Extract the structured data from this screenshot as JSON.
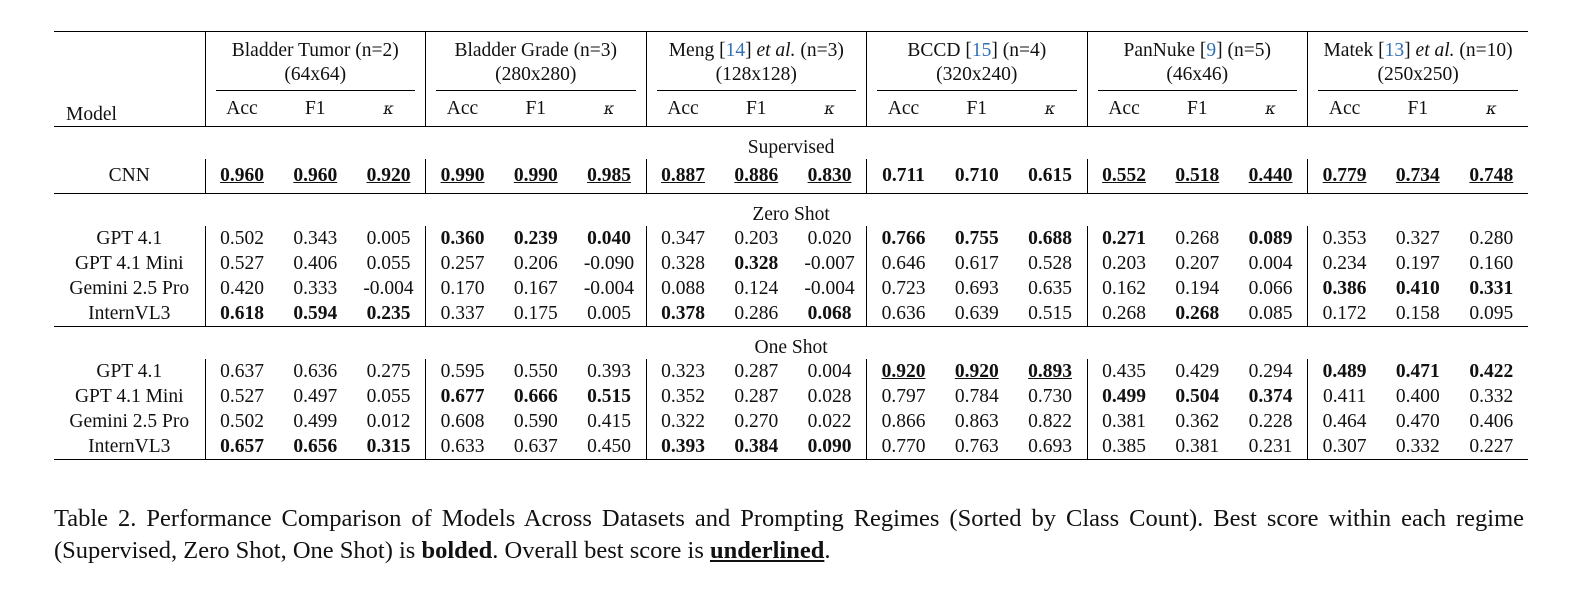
{
  "table": {
    "model_header": "Model",
    "datasets": [
      {
        "name": "Bladder Tumor",
        "cite": "",
        "etal": "",
        "classes": " (n=2)",
        "resolution": "(64x64)"
      },
      {
        "name": "Bladder Grade",
        "cite": "",
        "etal": "",
        "classes": " (n=3)",
        "resolution": "(280x280)"
      },
      {
        "name": "Meng ",
        "cite": "14",
        "etal": "et al.",
        "classes": " (n=3)",
        "resolution": "(128x128)"
      },
      {
        "name": "BCCD ",
        "cite": "15",
        "etal": "",
        "classes": " (n=4)",
        "resolution": "(320x240)"
      },
      {
        "name": "PanNuke ",
        "cite": "9",
        "etal": "",
        "classes": " (n=5)",
        "resolution": "(46x46)"
      },
      {
        "name": "Matek ",
        "cite": "13",
        "etal": "et al.",
        "classes": " (n=10)",
        "resolution": "(250x250)"
      }
    ],
    "metric_labels": [
      "Acc",
      "F1",
      "κ"
    ],
    "sections": [
      {
        "title": "Supervised",
        "rows": [
          {
            "model": "CNN",
            "cells": [
              {
                "v": "0.960",
                "b": true,
                "u": true
              },
              {
                "v": "0.960",
                "b": true,
                "u": true
              },
              {
                "v": "0.920",
                "b": true,
                "u": true
              },
              {
                "v": "0.990",
                "b": true,
                "u": true
              },
              {
                "v": "0.990",
                "b": true,
                "u": true
              },
              {
                "v": "0.985",
                "b": true,
                "u": true
              },
              {
                "v": "0.887",
                "b": true,
                "u": true
              },
              {
                "v": "0.886",
                "b": true,
                "u": true
              },
              {
                "v": "0.830",
                "b": true,
                "u": true
              },
              {
                "v": "0.711",
                "b": true,
                "u": false
              },
              {
                "v": "0.710",
                "b": true,
                "u": false
              },
              {
                "v": "0.615",
                "b": true,
                "u": false
              },
              {
                "v": "0.552",
                "b": true,
                "u": true
              },
              {
                "v": "0.518",
                "b": true,
                "u": true
              },
              {
                "v": "0.440",
                "b": true,
                "u": true
              },
              {
                "v": "0.779",
                "b": true,
                "u": true
              },
              {
                "v": "0.734",
                "b": true,
                "u": true
              },
              {
                "v": "0.748",
                "b": true,
                "u": true
              }
            ]
          }
        ]
      },
      {
        "title": "Zero Shot",
        "rows": [
          {
            "model": "GPT 4.1",
            "cells": [
              {
                "v": "0.502"
              },
              {
                "v": "0.343"
              },
              {
                "v": "0.005"
              },
              {
                "v": "0.360",
                "b": true
              },
              {
                "v": "0.239",
                "b": true
              },
              {
                "v": "0.040",
                "b": true
              },
              {
                "v": "0.347"
              },
              {
                "v": "0.203"
              },
              {
                "v": "0.020"
              },
              {
                "v": "0.766",
                "b": true
              },
              {
                "v": "0.755",
                "b": true
              },
              {
                "v": "0.688",
                "b": true
              },
              {
                "v": "0.271",
                "b": true
              },
              {
                "v": "0.268"
              },
              {
                "v": "0.089",
                "b": true
              },
              {
                "v": "0.353"
              },
              {
                "v": "0.327"
              },
              {
                "v": "0.280"
              }
            ]
          },
          {
            "model": "GPT 4.1 Mini",
            "cells": [
              {
                "v": "0.527"
              },
              {
                "v": "0.406"
              },
              {
                "v": "0.055"
              },
              {
                "v": "0.257"
              },
              {
                "v": "0.206"
              },
              {
                "v": "-0.090"
              },
              {
                "v": "0.328"
              },
              {
                "v": "0.328",
                "b": true
              },
              {
                "v": "-0.007"
              },
              {
                "v": "0.646"
              },
              {
                "v": "0.617"
              },
              {
                "v": "0.528"
              },
              {
                "v": "0.203"
              },
              {
                "v": "0.207"
              },
              {
                "v": "0.004"
              },
              {
                "v": "0.234"
              },
              {
                "v": "0.197"
              },
              {
                "v": "0.160"
              }
            ]
          },
          {
            "model": "Gemini 2.5 Pro",
            "cells": [
              {
                "v": "0.420"
              },
              {
                "v": "0.333"
              },
              {
                "v": "-0.004"
              },
              {
                "v": "0.170"
              },
              {
                "v": "0.167"
              },
              {
                "v": "-0.004"
              },
              {
                "v": "0.088"
              },
              {
                "v": "0.124"
              },
              {
                "v": "-0.004"
              },
              {
                "v": "0.723"
              },
              {
                "v": "0.693"
              },
              {
                "v": "0.635"
              },
              {
                "v": "0.162"
              },
              {
                "v": "0.194"
              },
              {
                "v": "0.066"
              },
              {
                "v": "0.386",
                "b": true
              },
              {
                "v": "0.410",
                "b": true
              },
              {
                "v": "0.331",
                "b": true
              }
            ]
          },
          {
            "model": "InternVL3",
            "cells": [
              {
                "v": "0.618",
                "b": true
              },
              {
                "v": "0.594",
                "b": true
              },
              {
                "v": "0.235",
                "b": true
              },
              {
                "v": "0.337"
              },
              {
                "v": "0.175"
              },
              {
                "v": "0.005"
              },
              {
                "v": "0.378",
                "b": true
              },
              {
                "v": "0.286"
              },
              {
                "v": "0.068",
                "b": true
              },
              {
                "v": "0.636"
              },
              {
                "v": "0.639"
              },
              {
                "v": "0.515"
              },
              {
                "v": "0.268"
              },
              {
                "v": "0.268",
                "b": true
              },
              {
                "v": "0.085"
              },
              {
                "v": "0.172"
              },
              {
                "v": "0.158"
              },
              {
                "v": "0.095"
              }
            ]
          }
        ]
      },
      {
        "title": "One Shot",
        "rows": [
          {
            "model": "GPT 4.1",
            "cells": [
              {
                "v": "0.637"
              },
              {
                "v": "0.636"
              },
              {
                "v": "0.275"
              },
              {
                "v": "0.595"
              },
              {
                "v": "0.550"
              },
              {
                "v": "0.393"
              },
              {
                "v": "0.323"
              },
              {
                "v": "0.287"
              },
              {
                "v": "0.004"
              },
              {
                "v": "0.920",
                "b": true,
                "u": true
              },
              {
                "v": "0.920",
                "b": true,
                "u": true
              },
              {
                "v": "0.893",
                "b": true,
                "u": true
              },
              {
                "v": "0.435"
              },
              {
                "v": "0.429"
              },
              {
                "v": "0.294"
              },
              {
                "v": "0.489",
                "b": true
              },
              {
                "v": "0.471",
                "b": true
              },
              {
                "v": "0.422",
                "b": true
              }
            ]
          },
          {
            "model": "GPT 4.1 Mini",
            "cells": [
              {
                "v": "0.527"
              },
              {
                "v": "0.497"
              },
              {
                "v": "0.055"
              },
              {
                "v": "0.677",
                "b": true
              },
              {
                "v": "0.666",
                "b": true
              },
              {
                "v": "0.515",
                "b": true
              },
              {
                "v": "0.352"
              },
              {
                "v": "0.287"
              },
              {
                "v": "0.028"
              },
              {
                "v": "0.797"
              },
              {
                "v": "0.784"
              },
              {
                "v": "0.730"
              },
              {
                "v": "0.499",
                "b": true
              },
              {
                "v": "0.504",
                "b": true
              },
              {
                "v": "0.374",
                "b": true
              },
              {
                "v": "0.411"
              },
              {
                "v": "0.400"
              },
              {
                "v": "0.332"
              }
            ]
          },
          {
            "model": "Gemini 2.5 Pro",
            "cells": [
              {
                "v": "0.502"
              },
              {
                "v": "0.499"
              },
              {
                "v": "0.012"
              },
              {
                "v": "0.608"
              },
              {
                "v": "0.590"
              },
              {
                "v": "0.415"
              },
              {
                "v": "0.322"
              },
              {
                "v": "0.270"
              },
              {
                "v": "0.022"
              },
              {
                "v": "0.866"
              },
              {
                "v": "0.863"
              },
              {
                "v": "0.822"
              },
              {
                "v": "0.381"
              },
              {
                "v": "0.362"
              },
              {
                "v": "0.228"
              },
              {
                "v": "0.464"
              },
              {
                "v": "0.470"
              },
              {
                "v": "0.406"
              }
            ]
          },
          {
            "model": "InternVL3",
            "cells": [
              {
                "v": "0.657",
                "b": true
              },
              {
                "v": "0.656",
                "b": true
              },
              {
                "v": "0.315",
                "b": true
              },
              {
                "v": "0.633"
              },
              {
                "v": "0.637"
              },
              {
                "v": "0.450"
              },
              {
                "v": "0.393",
                "b": true
              },
              {
                "v": "0.384",
                "b": true
              },
              {
                "v": "0.090",
                "b": true
              },
              {
                "v": "0.770"
              },
              {
                "v": "0.763"
              },
              {
                "v": "0.693"
              },
              {
                "v": "0.385"
              },
              {
                "v": "0.381"
              },
              {
                "v": "0.231"
              },
              {
                "v": "0.307"
              },
              {
                "v": "0.332"
              },
              {
                "v": "0.227"
              }
            ]
          }
        ]
      }
    ]
  },
  "caption": {
    "part1": "Table 2.  Performance Comparison of Models Across Datasets and Prompting Regimes (Sorted by Class Count).  Best score within each regime (Supervised, Zero Shot, One Shot) is ",
    "bold_word": "bolded",
    "part2": ". Overall best score is ",
    "underline_word": "underlined",
    "part3": "."
  }
}
